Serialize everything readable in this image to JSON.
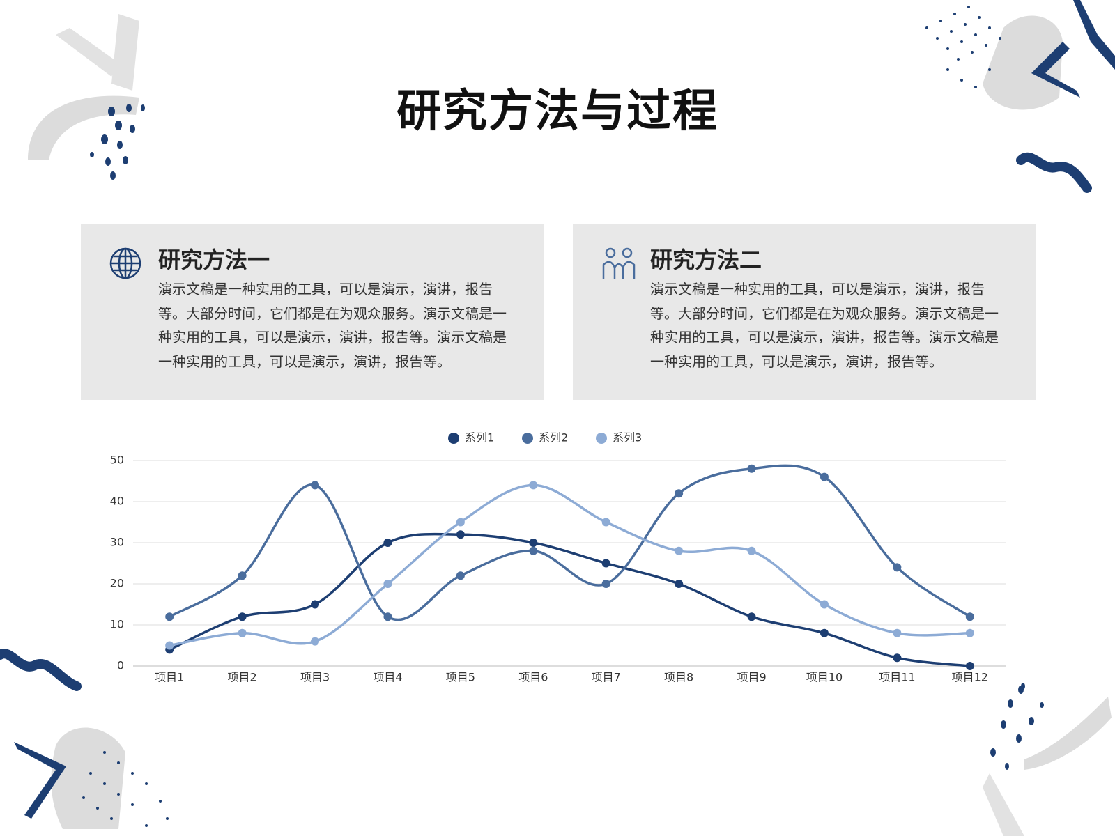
{
  "title": "研究方法与过程",
  "cards": [
    {
      "title": "研究方法一",
      "body": "演示文稿是一种实用的工具，可以是演示，演讲，报告等。大部分时间，它们都是在为观众服务。演示文稿是一种实用的工具，可以是演示，演讲，报告等。演示文稿是一种实用的工具，可以是演示，演讲，报告等。"
    },
    {
      "title": "研究方法二",
      "body": "演示文稿是一种实用的工具，可以是演示，演讲，报告等。大部分时间，它们都是在为观众服务。演示文稿是一种实用的工具，可以是演示，演讲，报告等。演示文稿是一种实用的工具，可以是演示，演讲，报告等。"
    }
  ],
  "chart_data": {
    "type": "line",
    "smooth": true,
    "legend": "top",
    "grid": true,
    "categories": [
      "项目1",
      "项目2",
      "项目3",
      "项目4",
      "项目5",
      "项目6",
      "项目7",
      "项目8",
      "项目9",
      "项目10",
      "项目11",
      "项目12"
    ],
    "series": [
      {
        "name": "系列1",
        "color": "#1d3e72",
        "values": [
          4,
          12,
          15,
          30,
          32,
          30,
          25,
          20,
          12,
          8,
          2,
          0
        ]
      },
      {
        "name": "系列2",
        "color": "#4a6d9d",
        "values": [
          12,
          22,
          44,
          12,
          22,
          28,
          20,
          42,
          48,
          46,
          24,
          12
        ]
      },
      {
        "name": "系列3",
        "color": "#8dabd5",
        "values": [
          5,
          8,
          6,
          20,
          35,
          44,
          35,
          28,
          28,
          15,
          8,
          8
        ]
      }
    ],
    "ylim": [
      0,
      50
    ],
    "yticks": [
      0,
      10,
      20,
      30,
      40,
      50
    ]
  }
}
